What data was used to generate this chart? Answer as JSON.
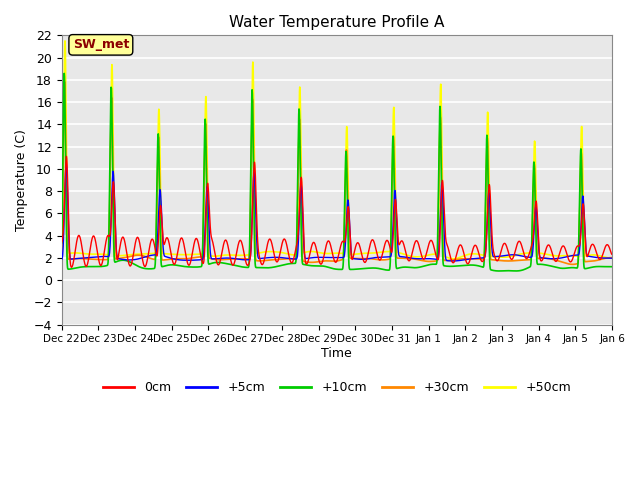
{
  "title": "Water Temperature Profile A",
  "xlabel": "Time",
  "ylabel": "Temperature (C)",
  "ylim": [
    -4,
    22
  ],
  "yticks": [
    -4,
    -2,
    0,
    2,
    4,
    6,
    8,
    10,
    12,
    14,
    16,
    18,
    20,
    22
  ],
  "annotation_text": "SW_met",
  "annotation_color": "#8B0000",
  "annotation_bg": "#FFFF99",
  "line_colors": {
    "0cm": "#FF0000",
    "+5cm": "#0000FF",
    "+10cm": "#00CC00",
    "+30cm": "#FF8800",
    "+50cm": "#FFFF00"
  },
  "line_widths": {
    "0cm": 1.0,
    "+5cm": 1.0,
    "+10cm": 1.2,
    "+30cm": 1.2,
    "+50cm": 1.2
  },
  "bg_color": "#E8E8E8",
  "grid_color": "#FFFFFF",
  "x_tick_labels": [
    "Dec 22",
    "Dec 23",
    "Dec 24",
    "Dec 25",
    "Dec 26",
    "Dec 27",
    "Dec 28",
    "Dec 29",
    "Dec 30",
    "Dec 31",
    "Jan 1",
    "Jan 2",
    "Jan 3",
    "Jan 4",
    "Jan 5",
    "Jan 6"
  ],
  "n_days": 15,
  "legend_labels": [
    "0cm",
    "+5cm",
    "+10cm",
    "+30cm",
    "+50cm"
  ]
}
